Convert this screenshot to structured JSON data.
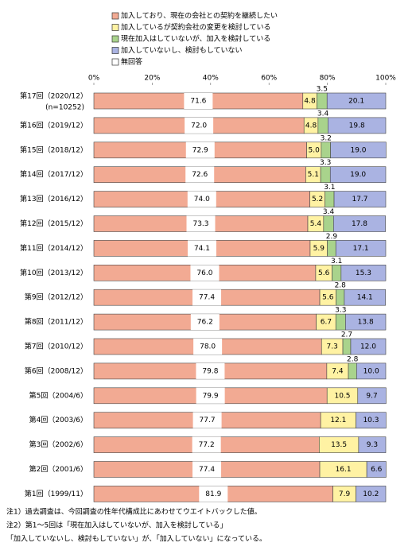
{
  "chart_data": {
    "type": "stacked-bar-horizontal",
    "categories": [
      "第17回（2020/12）",
      "第16回（2019/12）",
      "第15回（2018/12）",
      "第14回（2017/12）",
      "第13回（2016/12）",
      "第12回（2015/12）",
      "第11回（2014/12）",
      "第10回（2013/12）",
      "第9回（2012/12）",
      "第8回（2011/12）",
      "第7回（2010/12）",
      "第6回（2008/12）",
      "第5回（2004/6）",
      "第4回（2003/6）",
      "第3回（2002/6）",
      "第2回（2001/6）",
      "第1回（1999/11）"
    ],
    "sample_size_label": "(n=10252)",
    "series": [
      {
        "name": "加入しており、現在の会社との契約を継続したい",
        "color": "#f2aa93",
        "values": [
          71.6,
          72.0,
          72.9,
          72.6,
          74.0,
          73.3,
          74.1,
          76.0,
          77.4,
          76.2,
          78.0,
          79.8,
          79.9,
          77.7,
          77.2,
          77.4,
          81.9
        ],
        "value_labels": [
          "71.6",
          "72.0",
          "72.9",
          "72.6",
          "74.0",
          "73.3",
          "74.1",
          "76.0",
          "77.4",
          "76.2",
          "78.0",
          "79.8",
          "79.9",
          "77.7",
          "77.2",
          "77.4",
          "81.9"
        ]
      },
      {
        "name": "加入しているが契約会社の変更を検討している",
        "color": "#fff2a3",
        "values": [
          4.8,
          4.8,
          5.0,
          5.1,
          5.2,
          5.4,
          5.9,
          5.6,
          5.6,
          6.7,
          7.3,
          7.4,
          10.5,
          12.1,
          13.5,
          16.1,
          7.9
        ],
        "value_labels": [
          "4.8",
          "4.8",
          "5.0",
          "5.1",
          "5.2",
          "5.4",
          "5.9",
          "5.6",
          "5.6",
          "6.7",
          "7.3",
          "7.4",
          "10.5",
          "12.1",
          "13.5",
          "16.1",
          "7.9"
        ]
      },
      {
        "name": "現在加入はしていないが、加入を検討している",
        "color": "#a9d38c",
        "values": [
          3.5,
          3.4,
          3.2,
          3.3,
          3.1,
          3.4,
          2.9,
          3.1,
          2.8,
          3.3,
          2.7,
          2.8,
          null,
          null,
          null,
          null,
          null
        ],
        "value_labels": [
          "3.5",
          "3.4",
          "3.2",
          "3.3",
          "3.1",
          "3.4",
          "2.9",
          "3.1",
          "2.8",
          "3.3",
          "2.7",
          "2.8",
          null,
          null,
          null,
          null,
          null
        ]
      },
      {
        "name": "加入していないし、検討もしていない",
        "color": "#aab3e2",
        "values": [
          20.1,
          19.8,
          19.0,
          19.0,
          17.7,
          17.8,
          17.1,
          15.3,
          14.1,
          13.8,
          12.0,
          10.0,
          9.7,
          10.3,
          9.3,
          6.6,
          10.2
        ],
        "value_labels": [
          "20.1",
          "19.8",
          "19.0",
          "19.0",
          "17.7",
          "17.8",
          "17.1",
          "15.3",
          "14.1",
          "13.8",
          "12.0",
          "10.0",
          "9.7",
          "10.3",
          "9.3",
          "6.6",
          "10.2"
        ]
      },
      {
        "name": "無回答",
        "color": "#ffffff",
        "values": [
          null,
          null,
          null,
          null,
          null,
          null,
          null,
          null,
          null,
          null,
          null,
          null,
          null,
          null,
          null,
          null,
          null
        ]
      }
    ],
    "xlim": [
      0,
      100
    ],
    "xticks": [
      {
        "value": 0,
        "label": "0%"
      },
      {
        "value": 20,
        "label": "20%"
      },
      {
        "value": 40,
        "label": "40%"
      },
      {
        "value": 60,
        "label": "60%"
      },
      {
        "value": 80,
        "label": "80%"
      },
      {
        "value": 100,
        "label": "100%"
      }
    ],
    "notes": [
      "注1）過去調査は、今回調査の性年代構成比にあわせてウエイトバックした値。",
      "注2）第1～5回は「現在加入はしていないが、加入を検討している」",
      "「加入していないし、検討もしていない」が、「加入していない」になっている。"
    ]
  }
}
